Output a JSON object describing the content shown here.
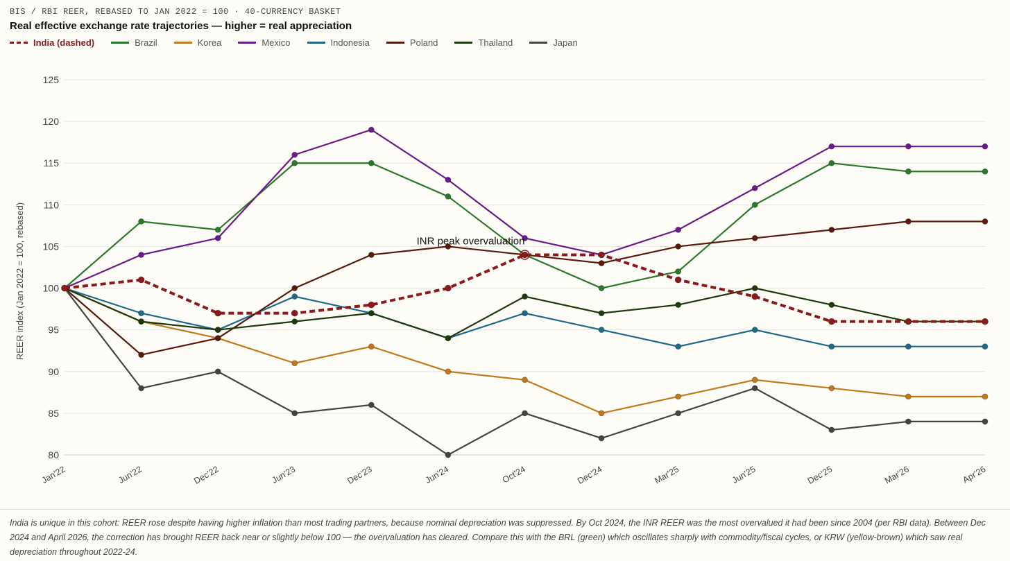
{
  "header": {
    "subtitle": "BIS / RBI REER, REBASED TO JAN 2022 = 100 · 40-CURRENCY BASKET",
    "title": "Real effective exchange rate trajectories — higher = real appreciation"
  },
  "legend": [
    {
      "label": "India (dashed)",
      "color": "#8b1a1a"
    },
    {
      "label": "Brazil",
      "color": "#2a7a2a"
    },
    {
      "label": "Korea",
      "color": "#c07a1a"
    },
    {
      "label": "Mexico",
      "color": "#6b1a8a"
    },
    {
      "label": "Indonesia",
      "color": "#1f6a8a"
    },
    {
      "label": "Poland",
      "color": "#5a1a0a"
    },
    {
      "label": "Thailand",
      "color": "#1f3a0a"
    },
    {
      "label": "Japan",
      "color": "#444444"
    }
  ],
  "chart_data": {
    "type": "line",
    "ylabel": "REER index (Jan 2022 = 100, rebased)",
    "ylim": [
      80,
      125
    ],
    "yticks": [
      80,
      85,
      90,
      95,
      100,
      105,
      110,
      115,
      120,
      125
    ],
    "categories": [
      "Jan'22",
      "Jun'22",
      "Dec'22",
      "Jun'23",
      "Dec'23",
      "Jun'24",
      "Oct'24",
      "Dec'24",
      "Mar'25",
      "Jun'25",
      "Dec'25",
      "Mar'26",
      "Apr'26"
    ],
    "series": [
      {
        "name": "India",
        "color": "#8b1a1a",
        "dashed": true,
        "values": [
          100,
          101,
          97,
          97,
          98,
          100,
          104,
          104,
          101,
          99,
          96,
          96,
          96
        ]
      },
      {
        "name": "Brazil",
        "color": "#2a7a2a",
        "values": [
          100,
          108,
          107,
          115,
          115,
          111,
          104,
          100,
          102,
          110,
          115,
          114,
          114
        ]
      },
      {
        "name": "Korea",
        "color": "#c07a1a",
        "values": [
          100,
          96,
          94,
          91,
          93,
          90,
          89,
          85,
          87,
          89,
          88,
          87,
          87
        ]
      },
      {
        "name": "Mexico",
        "color": "#6b1a8a",
        "values": [
          100,
          104,
          106,
          116,
          119,
          113,
          106,
          104,
          107,
          112,
          117,
          117,
          117
        ]
      },
      {
        "name": "Indonesia",
        "color": "#1f6a8a",
        "values": [
          100,
          97,
          95,
          99,
          97,
          94,
          97,
          95,
          93,
          95,
          93,
          93,
          93
        ]
      },
      {
        "name": "Poland",
        "color": "#5a1a0a",
        "values": [
          100,
          92,
          94,
          100,
          104,
          105,
          104,
          103,
          105,
          106,
          107,
          108,
          108
        ]
      },
      {
        "name": "Thailand",
        "color": "#1f3a0a",
        "values": [
          100,
          96,
          95,
          96,
          97,
          94,
          99,
          97,
          98,
          100,
          98,
          96,
          96
        ]
      },
      {
        "name": "Japan",
        "color": "#444444",
        "values": [
          100,
          88,
          90,
          85,
          86,
          80,
          85,
          82,
          85,
          88,
          83,
          84,
          84
        ]
      }
    ],
    "annotations": [
      {
        "text": "INR peak overvaluation",
        "x": "Oct'24",
        "y": 104
      }
    ]
  },
  "note": "India is unique in this cohort: REER rose despite having higher inflation than most trading partners, because nominal depreciation was suppressed. By Oct 2024, the INR REER was the most overvalued it had been since 2004 (per RBI data). Between Dec 2024 and April 2026, the correction has brought REER back near or slightly below 100 — the overvaluation has cleared. Compare this with the BRL (green) which oscillates sharply with commodity/fiscal cycles, or KRW (yellow-brown) which saw real depreciation throughout 2022-24."
}
